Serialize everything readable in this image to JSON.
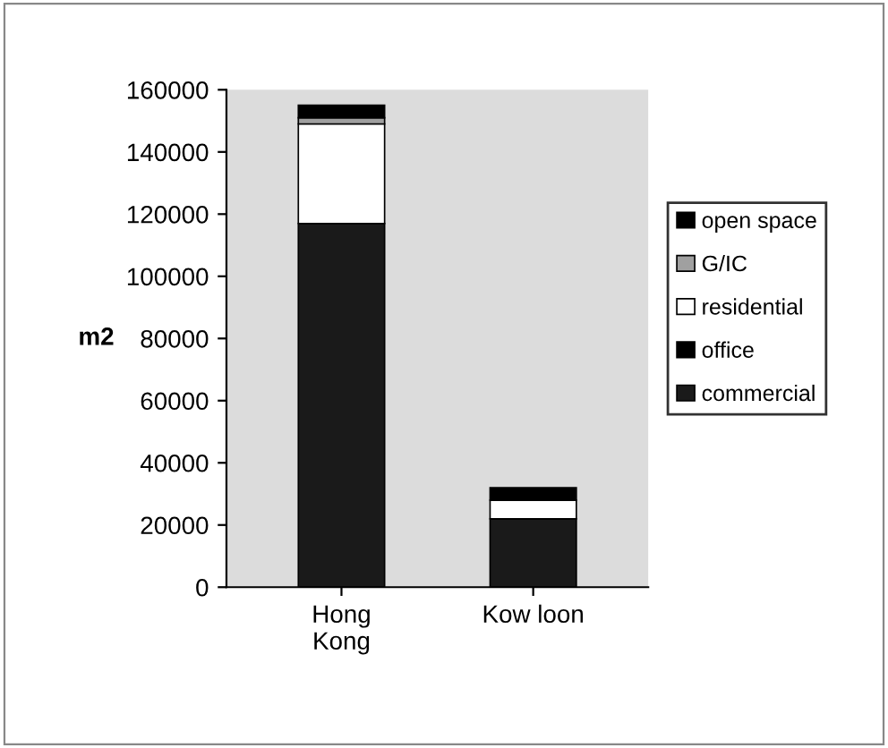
{
  "chart_data": {
    "type": "bar",
    "stacked": true,
    "ylabel": "m2",
    "categories": [
      "Hong\nKong",
      "Kow loon"
    ],
    "series": [
      {
        "name": "commercial",
        "color": "#1a1a1a",
        "values": [
          117000,
          22000
        ]
      },
      {
        "name": "office",
        "color": "#000000",
        "values": [
          0,
          0
        ]
      },
      {
        "name": "residential",
        "color": "#ffffff",
        "values": [
          32000,
          6000
        ]
      },
      {
        "name": "G/IC",
        "color": "#a0a0a0",
        "values": [
          2000,
          0
        ]
      },
      {
        "name": "open space",
        "color": "#000000",
        "values": [
          4000,
          4000
        ]
      }
    ],
    "ylim": [
      0,
      160000
    ],
    "yticks": [
      0,
      20000,
      40000,
      60000,
      80000,
      100000,
      120000,
      140000,
      160000
    ],
    "grid": false,
    "legend": "right"
  }
}
